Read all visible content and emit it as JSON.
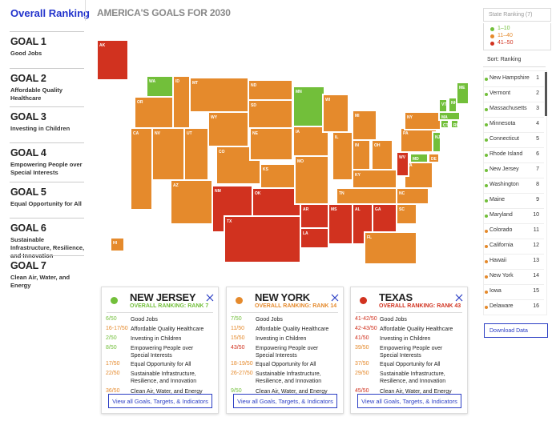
{
  "sidebar": {
    "title": "Overall Ranking",
    "goals": [
      {
        "number": "GOAL 1",
        "name": "Good Jobs"
      },
      {
        "number": "GOAL 2",
        "name": "Affordable Quality Healthcare"
      },
      {
        "number": "GOAL 3",
        "name": "Investing in Children"
      },
      {
        "number": "GOAL 4",
        "name": "Empowering People over Special Interests"
      },
      {
        "number": "GOAL 5",
        "name": "Equal Opportunity for All"
      },
      {
        "number": "GOAL 6",
        "name": "Sustainable Infrastructure, Resilience, and Innovation"
      },
      {
        "number": "GOAL 7",
        "name": "Clean Air, Water, and Energy"
      }
    ]
  },
  "header": {
    "title": "AMERICA'S GOALS FOR 2030"
  },
  "map": {
    "states": [
      {
        "label": "AK",
        "color": "#d1321f"
      },
      {
        "label": "HI",
        "color": "#e58a2c"
      },
      {
        "label": "WA",
        "color": "#72bf3a"
      },
      {
        "label": "OR",
        "color": "#e58a2c"
      },
      {
        "label": "CA",
        "color": "#e58a2c"
      },
      {
        "label": "NV",
        "color": "#e58a2c"
      },
      {
        "label": "ID",
        "color": "#e58a2c"
      },
      {
        "label": "MT",
        "color": "#e58a2c"
      },
      {
        "label": "WY",
        "color": "#e58a2c"
      },
      {
        "label": "UT",
        "color": "#e58a2c"
      },
      {
        "label": "AZ",
        "color": "#e58a2c"
      },
      {
        "label": "CO",
        "color": "#e58a2c"
      },
      {
        "label": "NM",
        "color": "#d1321f"
      },
      {
        "label": "ND",
        "color": "#e58a2c"
      },
      {
        "label": "SD",
        "color": "#e58a2c"
      },
      {
        "label": "NE",
        "color": "#e58a2c"
      },
      {
        "label": "KS",
        "color": "#e58a2c"
      },
      {
        "label": "OK",
        "color": "#d1321f"
      },
      {
        "label": "TX",
        "color": "#d1321f"
      },
      {
        "label": "MN",
        "color": "#72bf3a"
      },
      {
        "label": "IA",
        "color": "#e58a2c"
      },
      {
        "label": "MO",
        "color": "#e58a2c"
      },
      {
        "label": "AR",
        "color": "#d1321f"
      },
      {
        "label": "LA",
        "color": "#d1321f"
      },
      {
        "label": "WI",
        "color": "#e58a2c"
      },
      {
        "label": "IL",
        "color": "#e58a2c"
      },
      {
        "label": "MI",
        "color": "#e58a2c"
      },
      {
        "label": "IN",
        "color": "#e58a2c"
      },
      {
        "label": "OH",
        "color": "#e58a2c"
      },
      {
        "label": "KY",
        "color": "#e58a2c"
      },
      {
        "label": "TN",
        "color": "#e58a2c"
      },
      {
        "label": "MS",
        "color": "#d1321f"
      },
      {
        "label": "AL",
        "color": "#d1321f"
      },
      {
        "label": "GA",
        "color": "#d1321f"
      },
      {
        "label": "FL",
        "color": "#e58a2c"
      },
      {
        "label": "SC",
        "color": "#e58a2c"
      },
      {
        "label": "NC",
        "color": "#e58a2c"
      },
      {
        "label": "VA",
        "color": "#e58a2c"
      },
      {
        "label": "WV",
        "color": "#d1321f"
      },
      {
        "label": "PA",
        "color": "#e58a2c"
      },
      {
        "label": "NY",
        "color": "#e58a2c"
      },
      {
        "label": "NJ",
        "color": "#72bf3a"
      },
      {
        "label": "DE",
        "color": "#e58a2c"
      },
      {
        "label": "MD",
        "color": "#72bf3a"
      },
      {
        "label": "CT",
        "color": "#72bf3a"
      },
      {
        "label": "RI",
        "color": "#72bf3a"
      },
      {
        "label": "MA",
        "color": "#72bf3a"
      },
      {
        "label": "VT",
        "color": "#72bf3a"
      },
      {
        "label": "NH",
        "color": "#72bf3a"
      },
      {
        "label": "ME",
        "color": "#72bf3a"
      }
    ]
  },
  "panel": {
    "select": "State Ranking (7)",
    "legend": [
      {
        "label": "1–10",
        "color": "#72bf3a"
      },
      {
        "label": "11–40",
        "color": "#e58a2c"
      },
      {
        "label": "41–50",
        "color": "#d1321f"
      }
    ],
    "sort": "Sort: Ranking",
    "ranking": [
      {
        "name": "New Hampshire",
        "rank": 1,
        "color": "#72bf3a"
      },
      {
        "name": "Vermont",
        "rank": 2,
        "color": "#72bf3a"
      },
      {
        "name": "Massachusetts",
        "rank": 3,
        "color": "#72bf3a"
      },
      {
        "name": "Minnesota",
        "rank": 4,
        "color": "#72bf3a"
      },
      {
        "name": "Connecticut",
        "rank": 5,
        "color": "#72bf3a"
      },
      {
        "name": "Rhode Island",
        "rank": 6,
        "color": "#72bf3a"
      },
      {
        "name": "New Jersey",
        "rank": 7,
        "color": "#72bf3a"
      },
      {
        "name": "Washington",
        "rank": 8,
        "color": "#72bf3a"
      },
      {
        "name": "Maine",
        "rank": 9,
        "color": "#72bf3a"
      },
      {
        "name": "Maryland",
        "rank": 10,
        "color": "#72bf3a"
      },
      {
        "name": "Colorado",
        "rank": 11,
        "color": "#e58a2c"
      },
      {
        "name": "California",
        "rank": 12,
        "color": "#e58a2c"
      },
      {
        "name": "Hawaii",
        "rank": 13,
        "color": "#e58a2c"
      },
      {
        "name": "New York",
        "rank": 14,
        "color": "#e58a2c"
      },
      {
        "name": "Iowa",
        "rank": 15,
        "color": "#e58a2c"
      },
      {
        "name": "Delaware",
        "rank": 16,
        "color": "#e58a2c"
      }
    ],
    "download": "Download Data"
  },
  "cards": [
    {
      "state": "NEW JERSEY",
      "ranking": "OVERALL RANKING: RANK 7",
      "color": "#72bf3a",
      "button": "View all Goals, Targets, & Indicators",
      "scores": [
        {
          "score": "6/50",
          "goal": "Good Jobs",
          "color": "#72bf3a"
        },
        {
          "score": "16-17/50",
          "goal": "Affordable Quality Healthcare",
          "color": "#e58a2c"
        },
        {
          "score": "2/50",
          "goal": "Investing in Children",
          "color": "#72bf3a"
        },
        {
          "score": "8/50",
          "goal": "Empowering People over Special Interests",
          "color": "#72bf3a"
        },
        {
          "score": "17/50",
          "goal": "Equal Opportunity for All",
          "color": "#e58a2c"
        },
        {
          "score": "22/50",
          "goal": "Sustainable Infrastructure, Resilience, and Innovation",
          "color": "#e58a2c"
        },
        {
          "score": "36/50",
          "goal": "Clean Air, Water, and Energy",
          "color": "#e58a2c"
        }
      ]
    },
    {
      "state": "NEW YORK",
      "ranking": "OVERALL RANKING: RANK 14",
      "color": "#e58a2c",
      "button": "View all Goals, Targets, & Indicators",
      "scores": [
        {
          "score": "7/50",
          "goal": "Good Jobs",
          "color": "#72bf3a"
        },
        {
          "score": "11/50",
          "goal": "Affordable Quality Healthcare",
          "color": "#e58a2c"
        },
        {
          "score": "15/50",
          "goal": "Investing in Children",
          "color": "#e58a2c"
        },
        {
          "score": "43/50",
          "goal": "Empowering People over Special Interests",
          "color": "#d1321f"
        },
        {
          "score": "18-19/50",
          "goal": "Equal Opportunity for All",
          "color": "#e58a2c"
        },
        {
          "score": "26-27/50",
          "goal": "Sustainable Infrastructure, Resilience, and Innovation",
          "color": "#e58a2c"
        },
        {
          "score": "9/50",
          "goal": "Clean Air, Water, and Energy",
          "color": "#72bf3a"
        }
      ]
    },
    {
      "state": "TEXAS",
      "ranking": "OVERALL RANKING: RANK 43",
      "color": "#d1321f",
      "button": "View all Goals, Targets, & Indicators",
      "scores": [
        {
          "score": "41-42/50",
          "goal": "Good Jobs",
          "color": "#d1321f"
        },
        {
          "score": "42-43/50",
          "goal": "Affordable Quality Healthcare",
          "color": "#d1321f"
        },
        {
          "score": "41/50",
          "goal": "Investing in Children",
          "color": "#d1321f"
        },
        {
          "score": "39/50",
          "goal": "Empowering People over Special Interests",
          "color": "#e58a2c"
        },
        {
          "score": "37/50",
          "goal": "Equal Opportunity for All",
          "color": "#e58a2c"
        },
        {
          "score": "29/50",
          "goal": "Sustainable Infrastructure, Resilience, and Innovation",
          "color": "#e58a2c"
        },
        {
          "score": "45/50",
          "goal": "Clean Air, Water, and Energy",
          "color": "#d1321f"
        }
      ]
    }
  ]
}
